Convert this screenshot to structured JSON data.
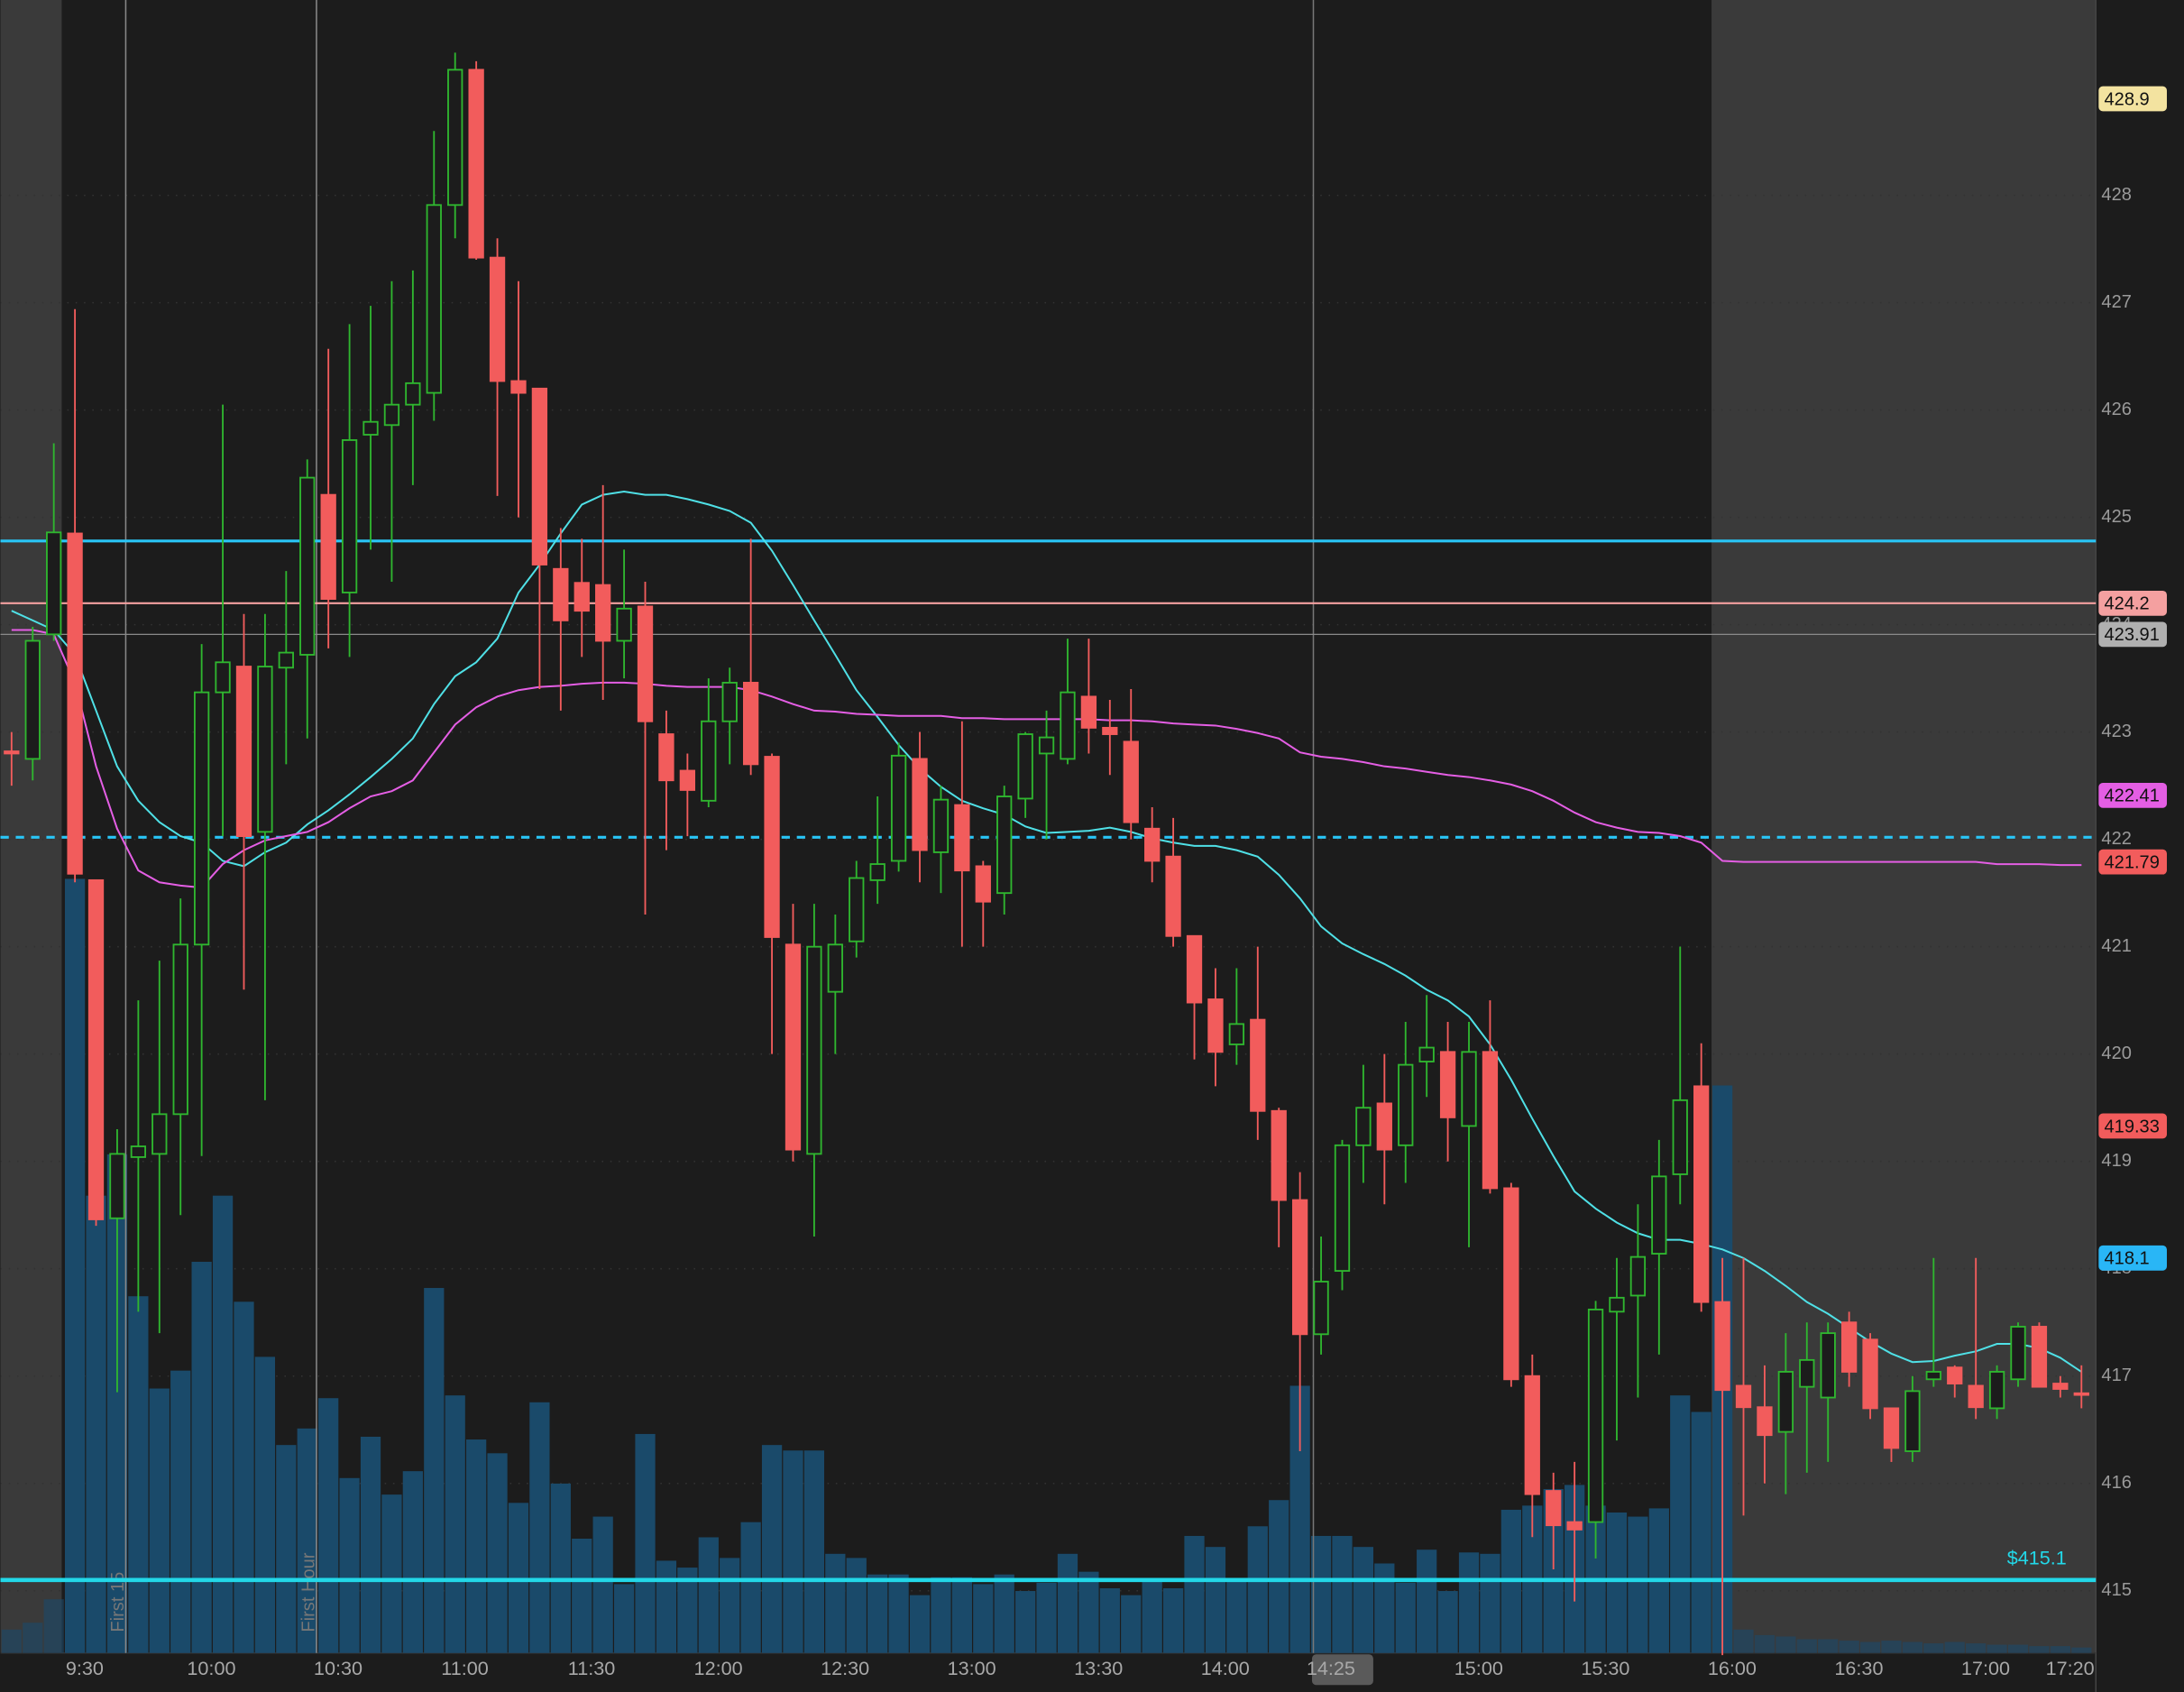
{
  "chart_data": {
    "type": "candlestick",
    "categories": [
      null,
      null,
      null,
      "9:30",
      null,
      null,
      null,
      null,
      null,
      "10:00",
      null,
      null,
      null,
      null,
      null,
      "10:30",
      null,
      null,
      null,
      null,
      null,
      "11:00",
      null,
      null,
      null,
      null,
      null,
      "11:30",
      null,
      null,
      null,
      null,
      null,
      "12:00",
      null,
      null,
      null,
      null,
      null,
      "12:30",
      null,
      null,
      null,
      null,
      null,
      "13:00",
      null,
      null,
      null,
      null,
      null,
      "13:30",
      null,
      null,
      null,
      null,
      null,
      "14:00",
      null,
      null,
      null,
      null,
      "14:25",
      null,
      null,
      null,
      null,
      null,
      null,
      "15:00",
      null,
      null,
      null,
      null,
      null,
      "15:30",
      null,
      null,
      null,
      null,
      null,
      "16:00",
      null,
      null,
      null,
      null,
      null,
      "16:30",
      null,
      null,
      null,
      null,
      null,
      "17:00",
      null,
      null,
      null,
      "17:20",
      null
    ],
    "open": [
      422.82,
      422.75,
      423.91,
      424.85,
      421.62,
      418.47,
      419.04,
      419.07,
      419.44,
      421.02,
      423.37,
      423.61,
      422.07,
      423.6,
      423.72,
      425.21,
      424.3,
      425.77,
      425.86,
      426.05,
      426.16,
      427.91,
      429.17,
      427.42,
      426.27,
      426.2,
      424.52,
      424.39,
      424.37,
      423.85,
      424.17,
      422.98,
      422.64,
      422.36,
      423.1,
      423.46,
      422.77,
      421.02,
      419.07,
      420.58,
      421.05,
      421.62,
      421.8,
      422.75,
      421.88,
      422.32,
      421.75,
      421.5,
      422.38,
      422.8,
      422.75,
      423.33,
      423.04,
      422.91,
      422.1,
      421.84,
      421.1,
      420.51,
      420.09,
      420.32,
      419.47,
      418.64,
      417.39,
      417.98,
      419.15,
      419.54,
      419.15,
      419.93,
      420.02,
      419.33,
      420.02,
      418.75,
      417,
      415.93,
      415.64,
      415.64,
      417.6,
      417.75,
      418.14,
      418.88,
      419.7,
      417.69,
      416.91,
      416.71,
      416.48,
      416.9,
      416.8,
      417.5,
      417.34,
      416.7,
      416.3,
      416.97,
      417.08,
      416.91,
      416.7,
      416.97,
      417.46,
      416.93,
      416.84
    ],
    "high": [
      423,
      423.98,
      425.69,
      426.94,
      421.62,
      419.3,
      420.5,
      420.87,
      421.45,
      423.82,
      426.05,
      424.1,
      424.1,
      424.5,
      425.54,
      426.57,
      426.8,
      426.97,
      427.2,
      427.3,
      428.6,
      429.33,
      429.25,
      427.6,
      427.2,
      426.2,
      424.9,
      424.8,
      425.3,
      424.7,
      424.4,
      423.2,
      422.8,
      423.5,
      423.6,
      424.8,
      422.8,
      421.4,
      421.4,
      421.3,
      421.8,
      422.4,
      422.9,
      423,
      422.5,
      423.1,
      421.8,
      422.5,
      423,
      423.2,
      423.87,
      423.87,
      423.3,
      423.4,
      422.3,
      422.2,
      421.1,
      420.8,
      420.8,
      421,
      419.5,
      418.9,
      418.3,
      419.2,
      419.9,
      420,
      420.3,
      420.55,
      420.3,
      420.3,
      420.5,
      418.8,
      417.2,
      416.1,
      416.2,
      417.7,
      418.1,
      418.6,
      419.2,
      421,
      420.1,
      418.1,
      418.1,
      417.1,
      417.4,
      417.5,
      417.5,
      417.6,
      417.4,
      416.7,
      417,
      418.1,
      417.1,
      418.1,
      417.1,
      417.5,
      417.5,
      417,
      417.1
    ],
    "low": [
      422.5,
      422.55,
      423.85,
      421.6,
      418.4,
      416.85,
      417.6,
      417.4,
      418.5,
      419.05,
      422.03,
      420.6,
      419.57,
      422.7,
      422.94,
      423.78,
      423.7,
      424.7,
      424.4,
      425.3,
      425.9,
      427.6,
      427.4,
      425.2,
      425,
      423.4,
      423.2,
      423.7,
      423.3,
      423.5,
      421.3,
      421.9,
      422.03,
      422.3,
      422.7,
      422.6,
      420,
      419,
      418.3,
      420,
      420.9,
      421.4,
      421.7,
      421.6,
      421.5,
      421,
      421,
      421.3,
      422.2,
      422,
      422.7,
      422.8,
      422.6,
      422,
      421.6,
      421,
      419.95,
      419.7,
      419.9,
      419.2,
      418.2,
      416.3,
      417.2,
      417.8,
      418.8,
      418.6,
      418.8,
      419.6,
      419,
      418.2,
      418.7,
      416.9,
      415.5,
      415.2,
      414.9,
      415.3,
      416.4,
      416.8,
      417.2,
      418.6,
      417.6,
      414.4,
      415.7,
      416,
      415.9,
      416.1,
      416.2,
      416.9,
      416.6,
      416.2,
      416.2,
      416.9,
      416.8,
      416.6,
      416.6,
      416.9,
      416.9,
      416.8,
      416.7
    ],
    "close": [
      422.8,
      423.85,
      424.86,
      421.68,
      418.46,
      419.07,
      419.14,
      419.44,
      421.02,
      423.37,
      423.65,
      422.03,
      423.61,
      423.74,
      425.37,
      424.24,
      425.72,
      425.89,
      426.05,
      426.25,
      427.91,
      429.17,
      427.42,
      426.27,
      426.16,
      424.56,
      424.04,
      424.13,
      423.85,
      424.15,
      423.1,
      422.55,
      422.46,
      423.1,
      423.46,
      422.7,
      421.09,
      419.11,
      421,
      421.02,
      421.64,
      421.77,
      422.78,
      421.9,
      422.37,
      421.71,
      421.42,
      422.4,
      422.98,
      422.95,
      423.37,
      423.04,
      422.98,
      422.16,
      421.8,
      421.1,
      420.48,
      420.02,
      420.28,
      419.47,
      418.64,
      417.39,
      417.88,
      419.15,
      419.5,
      419.11,
      419.9,
      420.06,
      419.41,
      420.02,
      418.75,
      416.97,
      415.9,
      415.61,
      415.57,
      417.62,
      417.73,
      418.11,
      418.86,
      419.57,
      417.69,
      416.87,
      416.71,
      416.45,
      417.04,
      417.15,
      417.4,
      417.04,
      416.7,
      416.33,
      416.86,
      417.04,
      416.93,
      416.71,
      417.04,
      417.46,
      416.9,
      416.88,
      416.83
    ],
    "colors": {
      "up": "#2fb62f",
      "down": "#f25c5c"
    },
    "volume": [
      17,
      22,
      39,
      562,
      332,
      362,
      259,
      192,
      205,
      284,
      332,
      255,
      215,
      151,
      163,
      185,
      127,
      157,
      115,
      132,
      265,
      187,
      155,
      145,
      109,
      182,
      123,
      83,
      99,
      50,
      159,
      67,
      62,
      84,
      69,
      95,
      151,
      147,
      147,
      72,
      69,
      57,
      57,
      42,
      55,
      55,
      50,
      57,
      45,
      51,
      72,
      59,
      47,
      42,
      54,
      47,
      85,
      77,
      52,
      92,
      111,
      194,
      85,
      85,
      77,
      65,
      51,
      75,
      45,
      73,
      72,
      104,
      107,
      119,
      122,
      107,
      102,
      99,
      105,
      187,
      175,
      412,
      17,
      13,
      12,
      10,
      10,
      9,
      8,
      9,
      8,
      7,
      8,
      7,
      6,
      6,
      5,
      5,
      4
    ],
    "volume_lim": [
      0,
      1200
    ],
    "volume_color": "#1a4a6a",
    "lines": [
      {
        "color": "#4fe0e6",
        "values": [
          424.13,
          424.04,
          423.95,
          423.72,
          423.2,
          422.68,
          422.36,
          422.16,
          422.03,
          421.97,
          421.8,
          421.75,
          421.88,
          421.97,
          422.14,
          422.27,
          422.42,
          422.58,
          422.75,
          422.94,
          423.26,
          423.52,
          423.65,
          423.87,
          424.3,
          424.56,
          424.85,
          425.12,
          425.21,
          425.24,
          425.21,
          425.21,
          425.17,
          425.12,
          425.06,
          424.95,
          424.69,
          424.37,
          424.04,
          423.72,
          423.39,
          423.14,
          422.88,
          422.66,
          422.49,
          422.36,
          422.29,
          422.23,
          422.12,
          422.06,
          422.07,
          422.08,
          422.11,
          422.07,
          422.01,
          421.97,
          421.94,
          421.94,
          421.9,
          421.84,
          421.67,
          421.45,
          421.19,
          421.03,
          420.93,
          420.84,
          420.73,
          420.6,
          420.5,
          420.35,
          420.09,
          419.76,
          419.4,
          419.05,
          418.72,
          418.56,
          418.43,
          418.33,
          418.27,
          418.27,
          418.23,
          418.18,
          418.1,
          417.98,
          417.84,
          417.69,
          417.58,
          417.45,
          417.32,
          417.21,
          417.13,
          417.14,
          417.19,
          417.23,
          417.3,
          417.3,
          417.26,
          417.17,
          417.04
        ]
      },
      {
        "color": "#e45ee4",
        "values": [
          423.95,
          423.95,
          423.91,
          423.46,
          422.68,
          422.1,
          421.71,
          421.6,
          421.57,
          421.55,
          421.77,
          421.9,
          421.99,
          422.03,
          422.07,
          422.16,
          422.29,
          422.4,
          422.45,
          422.55,
          422.81,
          423.07,
          423.23,
          423.33,
          423.39,
          423.42,
          423.43,
          423.45,
          423.46,
          423.46,
          423.45,
          423.43,
          423.42,
          423.42,
          423.42,
          423.39,
          423.33,
          423.26,
          423.2,
          423.19,
          423.17,
          423.16,
          423.15,
          423.15,
          423.15,
          423.13,
          423.13,
          423.12,
          423.12,
          423.12,
          423.12,
          423.12,
          423.11,
          423.11,
          423.1,
          423.08,
          423.07,
          423.06,
          423.03,
          422.99,
          422.94,
          422.81,
          422.77,
          422.75,
          422.72,
          422.68,
          422.66,
          422.63,
          422.6,
          422.58,
          422.55,
          422.51,
          422.45,
          422.36,
          422.25,
          422.16,
          422.11,
          422.07,
          422.06,
          422.03,
          421.97,
          421.8,
          421.79,
          421.79,
          421.79,
          421.79,
          421.79,
          421.79,
          421.79,
          421.79,
          421.79,
          421.79,
          421.79,
          421.79,
          421.77,
          421.77,
          421.77,
          421.76,
          421.76
        ]
      }
    ],
    "levels": [
      {
        "value": 424.78,
        "color": "#29c5f6",
        "style": "solid"
      },
      {
        "value": 424.2,
        "color": "#f4a0a0",
        "style": "solid"
      },
      {
        "value": 423.91,
        "color": "#8a8a8a",
        "style": "solid"
      },
      {
        "value": 422.02,
        "color": "#29c5f6",
        "style": "dashed"
      },
      {
        "value": 415.1,
        "label": "$415.1",
        "color": "#22d8e8",
        "style": "thick"
      }
    ],
    "price_labels": [
      {
        "value": 428.9,
        "color": "#f3e3a0"
      },
      {
        "value": 424.2,
        "color": "#f4a0a0"
      },
      {
        "value": 423.91,
        "color": "#b0b0b0"
      },
      {
        "value": 422.41,
        "color": "#e45ee4"
      },
      {
        "value": 421.79,
        "color": "#f25c5c"
      },
      {
        "value": 419.33,
        "color": "#f25c5c"
      },
      {
        "value": 418.1,
        "color": "#29b6f6"
      }
    ],
    "annotations": [
      "First 15",
      "First Hour"
    ],
    "ylim": [
      414.42,
      429.82
    ],
    "yticks": [
      415,
      416,
      417,
      418,
      419,
      420,
      421,
      422,
      423,
      424,
      425,
      426,
      427,
      428
    ],
    "grid": true
  }
}
